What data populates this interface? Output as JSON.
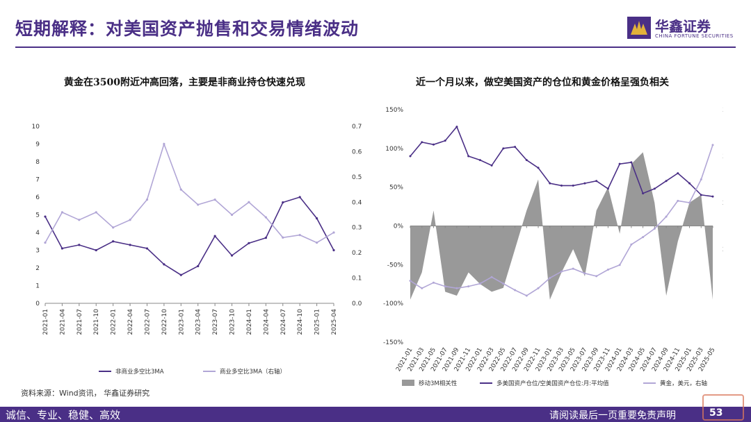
{
  "header": {
    "title": "短期解释：对美国资产抛售和交易情绪波动"
  },
  "brand": {
    "name_cn": "华鑫证券",
    "name_en": "CHINA FORTUNE SECURITIES",
    "color": "#4a2f86"
  },
  "source_text": "资料来源：Wind资讯，  华鑫证券研究",
  "footer": {
    "left": "诚信、专业、稳健、高效",
    "right": "请阅读最后一页重要免责声明",
    "page": "53"
  },
  "chart_data": [
    {
      "type": "line",
      "title": "黄金在3500附近冲高回落，主要是非商业持仓快速兑现",
      "x": [
        "2021-01",
        "2021-04",
        "2021-07",
        "2021-10",
        "2022-01",
        "2022-04",
        "2022-07",
        "2022-10",
        "2023-01",
        "2023-04",
        "2023-07",
        "2023-10",
        "2024-01",
        "2024-04",
        "2024-07",
        "2024-10",
        "2025-01",
        "2025-04"
      ],
      "ylim_left": [
        0,
        10
      ],
      "yticks_left": [
        "0",
        "1",
        "2",
        "3",
        "4",
        "5",
        "6",
        "7",
        "8",
        "9",
        "10"
      ],
      "ylim_right": [
        0,
        0.7
      ],
      "yticks_right": [
        "0.0",
        "0.1",
        "0.2",
        "0.3",
        "0.4",
        "0.5",
        "0.6",
        "0.7"
      ],
      "series": [
        {
          "name": "非商业多空比3MA",
          "axis": "left",
          "color": "#4a2f86",
          "values": [
            4.9,
            3.1,
            3.3,
            3.0,
            3.5,
            3.3,
            3.1,
            2.2,
            1.6,
            2.1,
            3.8,
            2.7,
            3.4,
            3.7,
            5.7,
            6.0,
            4.8,
            3.0
          ]
        },
        {
          "name": "商业多空比3MA（右轴）",
          "axis": "right",
          "color": "#b1a6d6",
          "values": [
            0.24,
            0.36,
            0.33,
            0.36,
            0.3,
            0.33,
            0.41,
            0.63,
            0.45,
            0.39,
            0.41,
            0.35,
            0.4,
            0.34,
            0.26,
            0.27,
            0.24,
            0.28
          ]
        }
      ]
    },
    {
      "type": "bar+line",
      "title": "近一个月以来，做空美国资产的仓位和黄金价格呈强负相关",
      "x": [
        "2021-01",
        "2021-03",
        "2021-05",
        "2021-07",
        "2021-09",
        "2021-11",
        "2022-01",
        "2022-03",
        "2022-05",
        "2022-07",
        "2022-09",
        "2022-11",
        "2023-01",
        "2023-03",
        "2023-05",
        "2023-07",
        "2023-09",
        "2023-11",
        "2024-01",
        "2024-03",
        "2024-05",
        "2024-07",
        "2024-09",
        "2024-11",
        "2025-01",
        "2025-03",
        "2025-05"
      ],
      "ylim_left": [
        -150,
        150
      ],
      "yticks_left": [
        "-150%",
        "-100%",
        "-50%",
        "0%",
        "50%",
        "100%",
        "150%"
      ],
      "ylim_right": [
        1200,
        3700
      ],
      "yticks_right": [
        "1,200",
        "1,700",
        "2,200",
        "2,700",
        "3,200",
        "3,700"
      ],
      "series": [
        {
          "name": "移动3M相关性",
          "type": "area",
          "axis": "left",
          "color": "#999999",
          "values": [
            -95,
            -60,
            20,
            -85,
            -90,
            -60,
            -75,
            -85,
            -80,
            -30,
            20,
            60,
            -95,
            -60,
            -30,
            -65,
            20,
            50,
            -10,
            80,
            95,
            30,
            -90,
            -20,
            30,
            40,
            -95
          ]
        },
        {
          "name": "多美国资产仓位/空美国资产仓位:月:平均值",
          "type": "line",
          "axis": "left",
          "color": "#4a2f86",
          "values": [
            90,
            108,
            105,
            110,
            128,
            90,
            85,
            78,
            100,
            102,
            85,
            75,
            55,
            52,
            52,
            55,
            58,
            48,
            80,
            82,
            42,
            48,
            58,
            68,
            55,
            40,
            38
          ]
        },
        {
          "name": "黄金，美元，右轴",
          "type": "line",
          "axis": "right",
          "color": "#b1a6d6",
          "values": [
            1860,
            1780,
            1840,
            1800,
            1780,
            1800,
            1830,
            1900,
            1830,
            1760,
            1700,
            1780,
            1890,
            1960,
            1990,
            1940,
            1910,
            1980,
            2030,
            2250,
            2330,
            2420,
            2550,
            2720,
            2700,
            2950,
            3320
          ]
        }
      ]
    }
  ]
}
